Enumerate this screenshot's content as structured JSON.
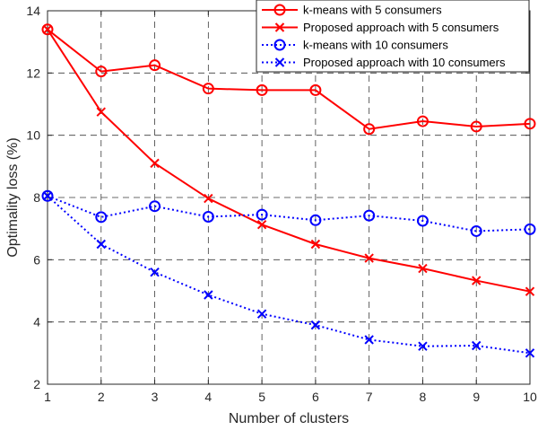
{
  "chart_data": {
    "type": "line",
    "title": "",
    "xlabel": "Number of clusters",
    "ylabel": "Optimality loss (%)",
    "x": [
      1,
      2,
      3,
      4,
      5,
      6,
      7,
      8,
      9,
      10
    ],
    "xlim": [
      1,
      10
    ],
    "ylim": [
      2,
      14
    ],
    "xticks": [
      "1",
      "2",
      "3",
      "4",
      "5",
      "6",
      "7",
      "8",
      "9",
      "10"
    ],
    "yticks": [
      "2",
      "4",
      "6",
      "8",
      "10",
      "12",
      "14"
    ],
    "grid": true,
    "legend_position": "top-right",
    "series": [
      {
        "name": "k-means with 5 consumers",
        "color": "#ff0000",
        "line_style": "solid",
        "marker": "circle",
        "values": [
          13.4,
          12.05,
          12.25,
          11.5,
          11.45,
          11.45,
          10.2,
          10.45,
          10.28,
          10.37
        ]
      },
      {
        "name": "Proposed approach with 5 consumers",
        "color": "#ff0000",
        "line_style": "solid",
        "marker": "x",
        "values": [
          13.4,
          10.75,
          9.1,
          7.97,
          7.13,
          6.5,
          6.05,
          5.72,
          5.33,
          4.98
        ]
      },
      {
        "name": "k-means with 10 consumers",
        "color": "#0000ff",
        "line_style": "dotted",
        "marker": "circle",
        "values": [
          8.05,
          7.37,
          7.72,
          7.38,
          7.45,
          7.27,
          7.42,
          7.25,
          6.92,
          6.98
        ]
      },
      {
        "name": "Proposed approach with 10 consumers",
        "color": "#0000ff",
        "line_style": "dotted",
        "marker": "x",
        "values": [
          8.05,
          6.5,
          5.6,
          4.87,
          4.26,
          3.9,
          3.43,
          3.22,
          3.24,
          3.0
        ]
      }
    ]
  }
}
